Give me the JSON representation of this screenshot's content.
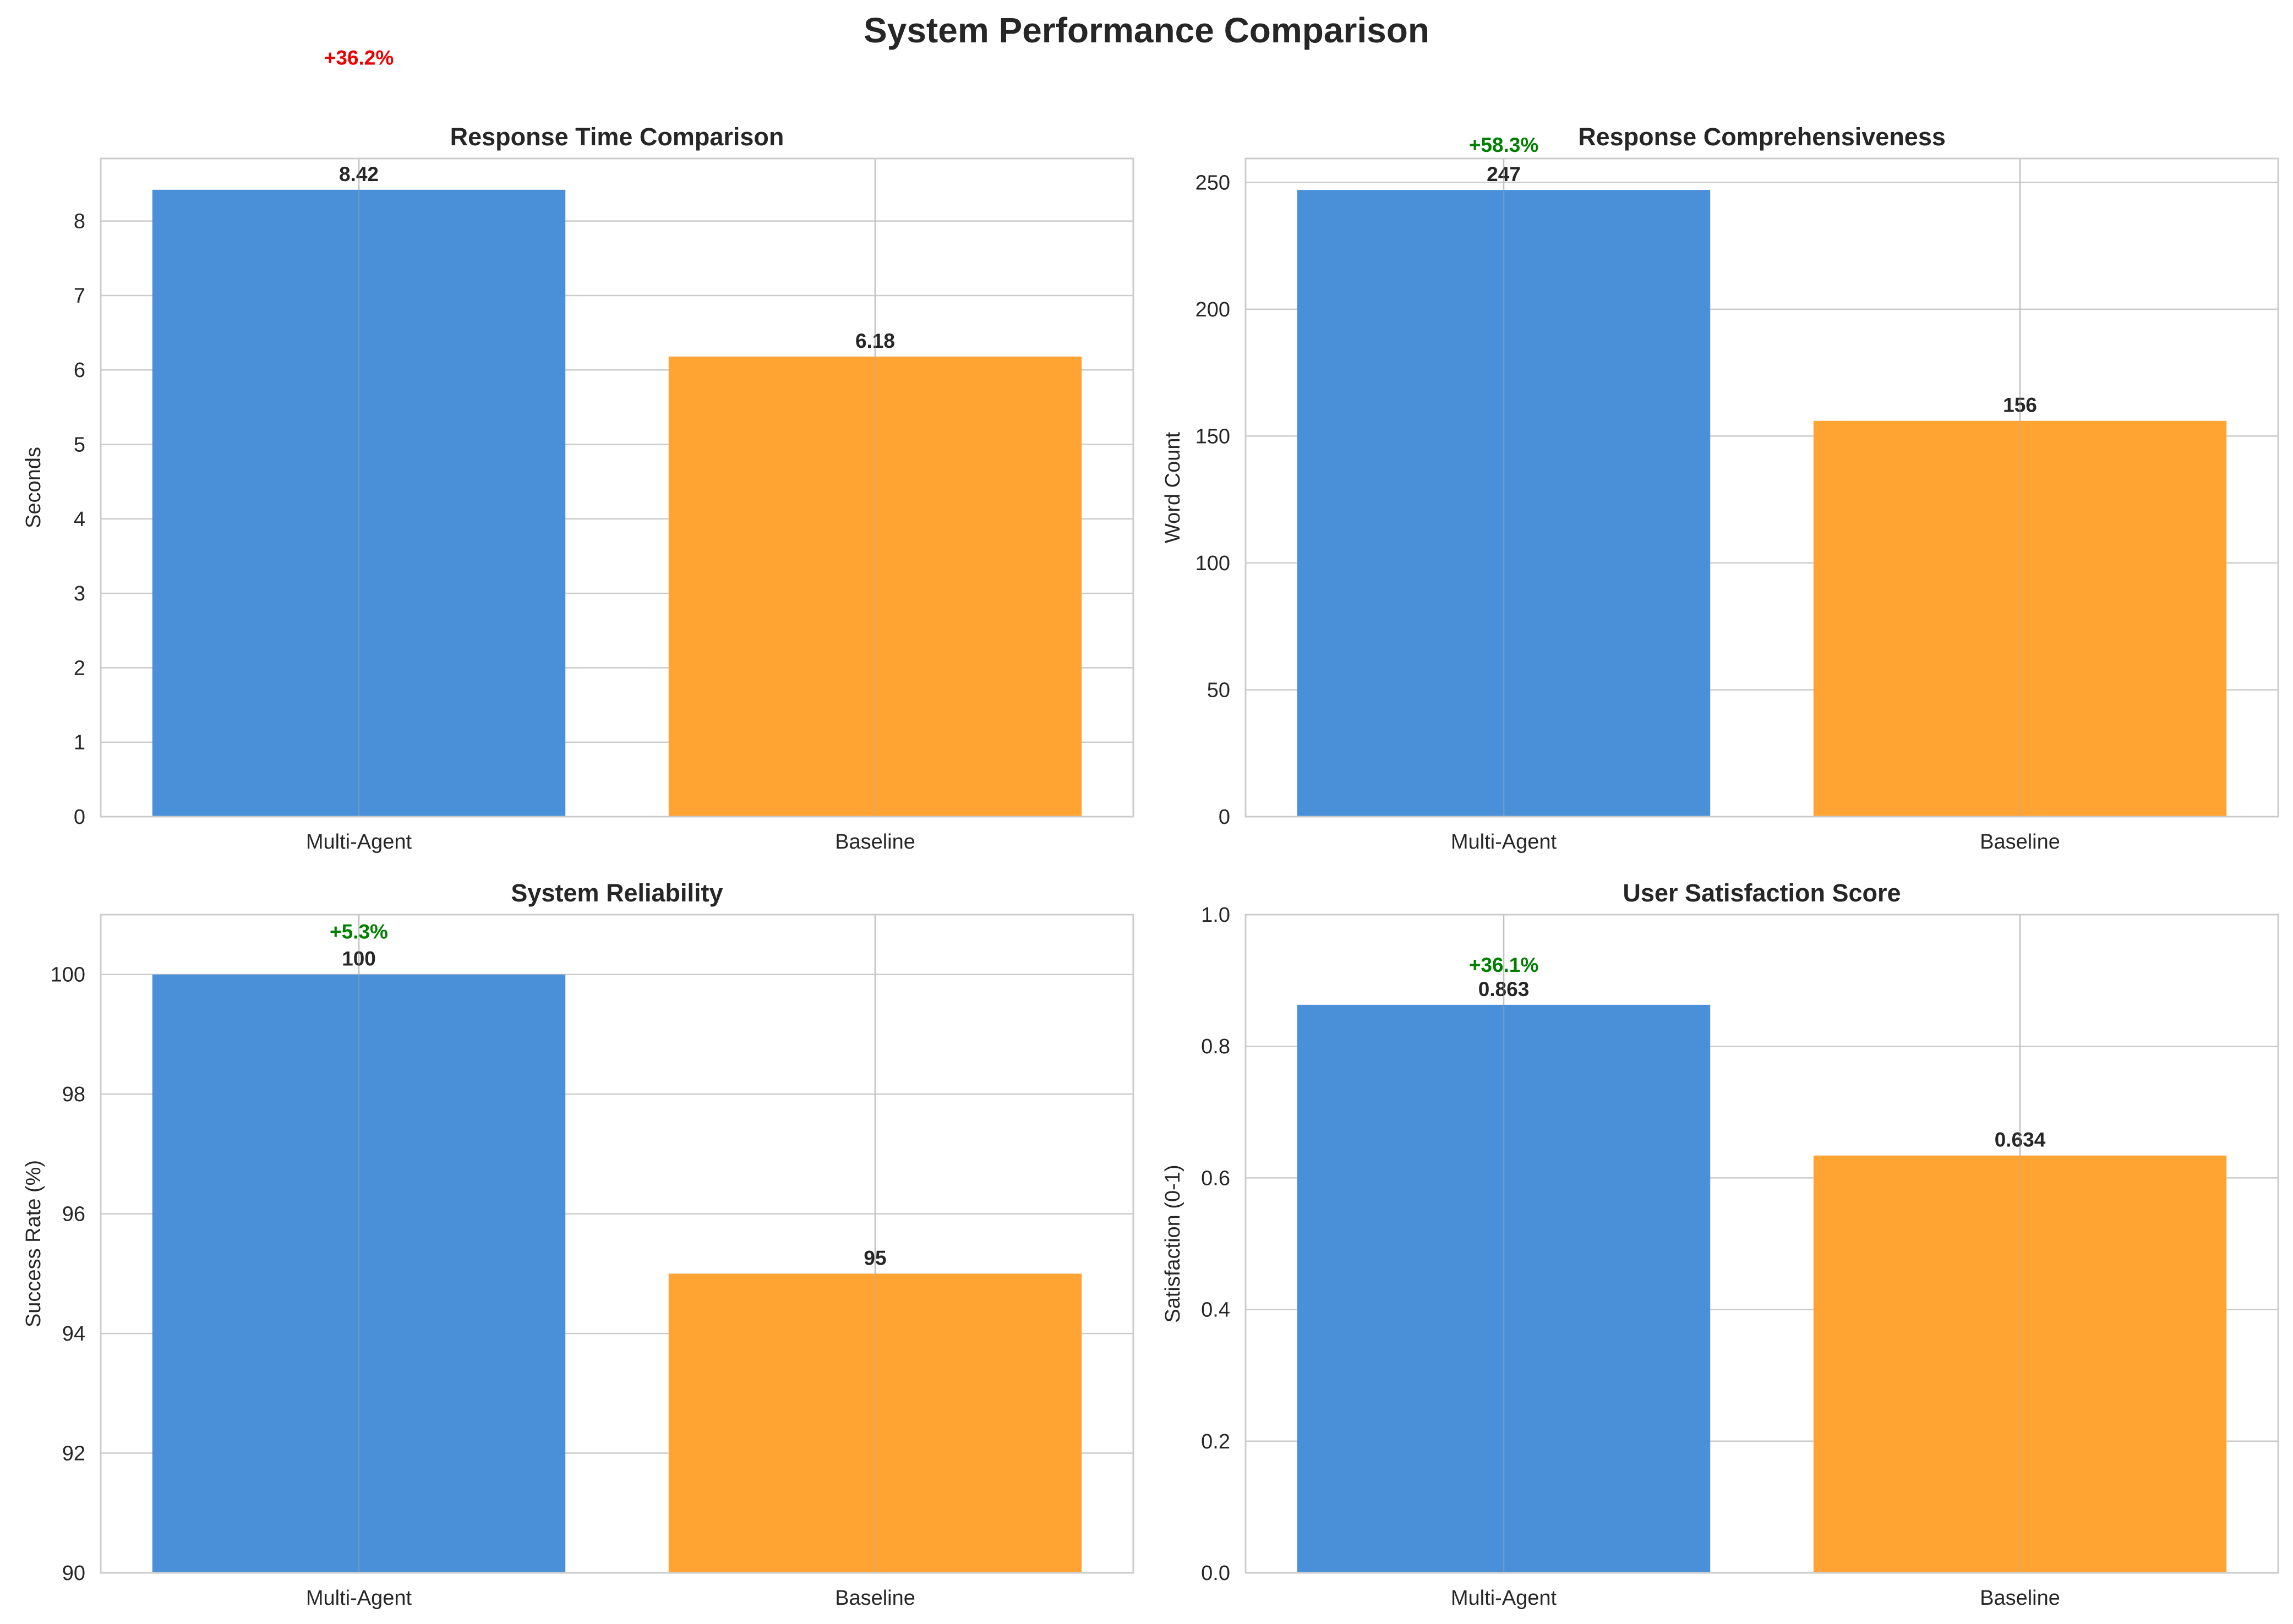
{
  "title": "System Performance Comparison",
  "colors": {
    "multi_agent": "#4a90d9",
    "baseline": "#ffa333",
    "increase": "#008000",
    "decrease": "#ee0000",
    "grid": "#cccccc"
  },
  "chart_data": [
    {
      "type": "bar",
      "title": "Response Time Comparison",
      "ylabel": "Seconds",
      "categories": [
        "Multi-Agent",
        "Baseline"
      ],
      "values": [
        8.42,
        6.18
      ],
      "value_labels": [
        "8.42",
        "6.18"
      ],
      "ylim": [
        0,
        8.84
      ],
      "yticks": [
        0,
        1,
        2,
        3,
        4,
        5,
        6,
        7,
        8
      ],
      "ytick_labels": [
        "0",
        "1",
        "2",
        "3",
        "4",
        "5",
        "6",
        "7",
        "8"
      ],
      "change_label": "+36.2%",
      "change_color": "#ee0000",
      "change_value": 10.1
    },
    {
      "type": "bar",
      "title": "Response Comprehensiveness",
      "ylabel": "Word Count",
      "categories": [
        "Multi-Agent",
        "Baseline"
      ],
      "values": [
        247,
        156
      ],
      "value_labels": [
        "247",
        "156"
      ],
      "ylim": [
        0,
        259.4
      ],
      "yticks": [
        0,
        50,
        100,
        150,
        200,
        250
      ],
      "ytick_labels": [
        "0",
        "50",
        "100",
        "150",
        "200",
        "250"
      ],
      "change_label": "+58.3%",
      "change_color": "#008000",
      "change_value": 262
    },
    {
      "type": "bar",
      "title": "System Reliability",
      "ylabel": "Success Rate (%)",
      "categories": [
        "Multi-Agent",
        "Baseline"
      ],
      "values": [
        100,
        95
      ],
      "value_labels": [
        "100",
        "95"
      ],
      "ylim": [
        90,
        101
      ],
      "yticks": [
        90,
        92,
        94,
        96,
        98,
        100
      ],
      "ytick_labels": [
        "90",
        "92",
        "94",
        "96",
        "98",
        "100"
      ],
      "change_label": "+5.3%",
      "change_color": "#008000",
      "change_value": 100.6
    },
    {
      "type": "bar",
      "title": "User Satisfaction Score",
      "ylabel": "Satisfaction (0-1)",
      "categories": [
        "Multi-Agent",
        "Baseline"
      ],
      "values": [
        0.863,
        0.634
      ],
      "value_labels": [
        "0.863",
        "0.634"
      ],
      "ylim": [
        0,
        1.0
      ],
      "yticks": [
        0,
        0.2,
        0.4,
        0.6,
        0.8,
        1.0
      ],
      "ytick_labels": [
        "0.0",
        "0.2",
        "0.4",
        "0.6",
        "0.8",
        "1.0"
      ],
      "change_label": "+36.1%",
      "change_color": "#008000",
      "change_value": 0.913
    }
  ]
}
